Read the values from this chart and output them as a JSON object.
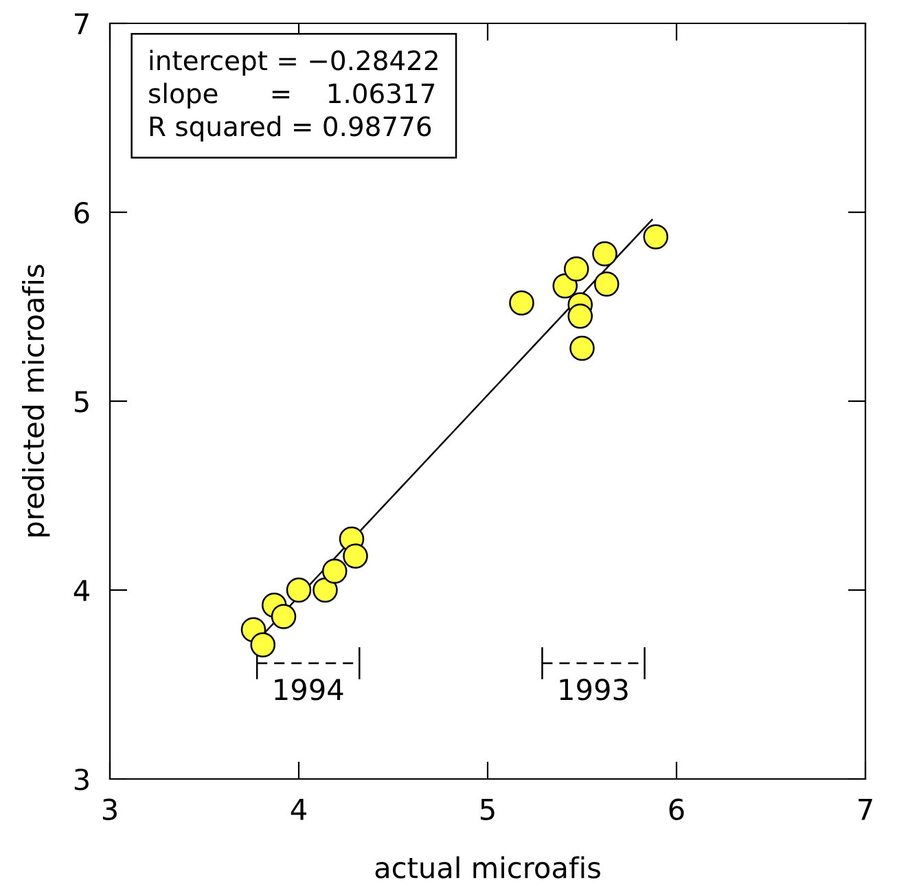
{
  "chart_data": {
    "type": "scatter",
    "xlabel": "actual microafis",
    "ylabel": "predicted microafis",
    "xlim": [
      3,
      7
    ],
    "ylim": [
      3,
      7
    ],
    "xticks": [
      3,
      4,
      5,
      6,
      7
    ],
    "yticks": [
      3,
      4,
      5,
      6,
      7
    ],
    "grid": false,
    "legend": false,
    "series": [
      {
        "color": "#ffff40",
        "marker": "circle",
        "x": [
          3.76,
          3.81,
          3.87,
          3.92,
          4.0,
          4.14,
          4.19,
          4.28,
          4.3,
          5.18,
          5.41,
          5.47,
          5.49,
          5.49,
          5.5,
          5.62,
          5.63,
          5.89
        ],
        "values": [
          3.79,
          3.71,
          3.92,
          3.86,
          4.0,
          4.0,
          4.1,
          4.27,
          4.18,
          5.52,
          5.61,
          5.7,
          5.51,
          5.45,
          5.28,
          5.78,
          5.62,
          5.87
        ]
      },
      {
        "type": "line",
        "color": "#000000",
        "x": [
          3.75,
          5.87
        ],
        "values": [
          3.7,
          5.96
        ]
      }
    ],
    "annotations": [
      "intercept = −0.28422",
      "slope      =    1.06317",
      "R squared = 0.98776",
      "1994",
      "1993"
    ]
  }
}
